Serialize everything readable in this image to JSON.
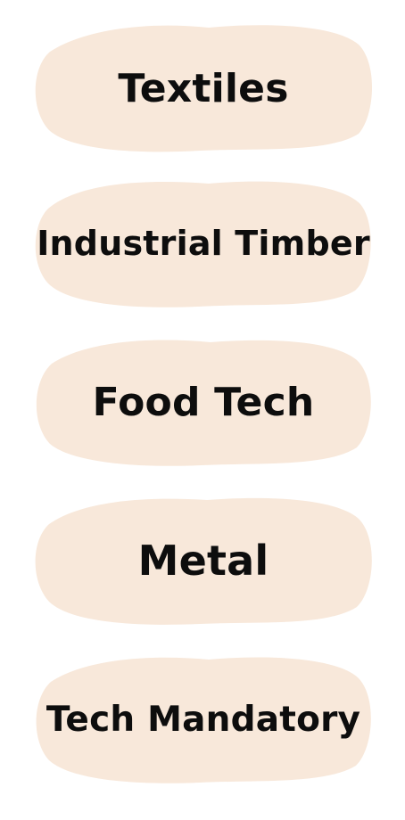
{
  "colors": {
    "button_fill": "#f8e8da",
    "text": "#0d0d0d",
    "background": "#ffffff"
  },
  "menu": {
    "items": [
      {
        "label": "Textiles"
      },
      {
        "label": "Industrial Timber"
      },
      {
        "label": "Food Tech"
      },
      {
        "label": "Metal"
      },
      {
        "label": "Tech Mandatory"
      }
    ]
  }
}
